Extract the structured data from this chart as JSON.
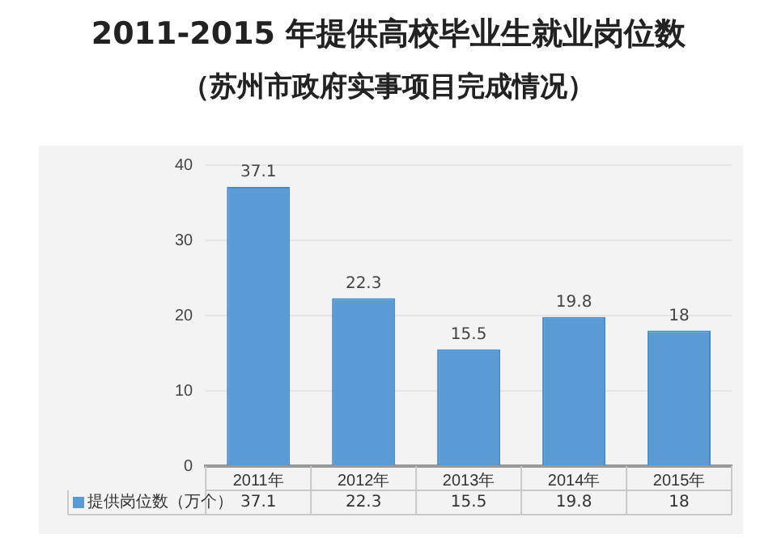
{
  "chart_data": {
    "type": "bar",
    "title": "2011-2015 年提供高校毕业生就业岗位数",
    "subtitle": "（苏州市政府实事项目完成情况）",
    "categories": [
      "2011年",
      "2012年",
      "2013年",
      "2014年",
      "2015年"
    ],
    "series": [
      {
        "name": "提供岗位数（万个）",
        "color": "#5b9bd5",
        "values": [
          37.1,
          22.3,
          15.5,
          19.8,
          18
        ]
      }
    ],
    "annotations": [
      "37.1",
      "22.3",
      "15.5",
      "19.8",
      "18"
    ],
    "ylim": [
      0,
      40
    ],
    "yticks": [
      0,
      10,
      20,
      30,
      40
    ],
    "grid": "y",
    "legend": "bottom left",
    "data_labels": true
  }
}
